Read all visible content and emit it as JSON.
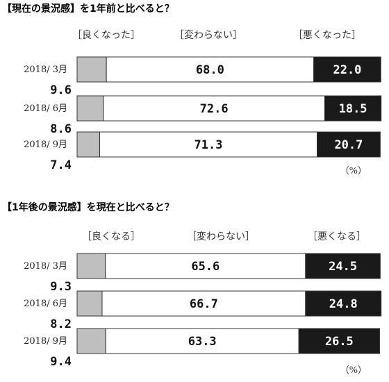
{
  "chart_data": [
    {
      "type": "bar",
      "stacked": true,
      "orientation": "horizontal",
      "title": "【現在の景況感】を1年前と比べると？",
      "headers": [
        "［良くなった］",
        "［変わらない］",
        "［悪くなった］"
      ],
      "categories": [
        "2018/ 3月",
        "2018/ 6月",
        "2018/ 9月"
      ],
      "series": [
        {
          "name": "［良くなった］",
          "values": [
            "9.6",
            "8.6",
            "7.4"
          ],
          "color": "#bfbfbf"
        },
        {
          "name": "［変わらない］",
          "values": [
            "68.0",
            "72.6",
            "71.3"
          ],
          "color": "#ffffff"
        },
        {
          "name": "［悪くなった］",
          "values": [
            "22.0",
            "18.5",
            "20.7"
          ],
          "color": "#1a1a1a"
        }
      ],
      "unit": "（%）",
      "xlim": [
        0,
        100
      ]
    },
    {
      "type": "bar",
      "stacked": true,
      "orientation": "horizontal",
      "title": "【1年後の景況感】を現在と比べると？",
      "headers": [
        "［良くなる］",
        "［変わらない］",
        "［悪くなる］"
      ],
      "categories": [
        "2018/ 3月",
        "2018/ 6月",
        "2018/ 9月"
      ],
      "series": [
        {
          "name": "［良くなる］",
          "values": [
            "9.3",
            "8.2",
            "9.4"
          ],
          "color": "#bfbfbf"
        },
        {
          "name": "［変わらない］",
          "values": [
            "65.6",
            "66.7",
            "63.3"
          ],
          "color": "#ffffff"
        },
        {
          "name": "［悪くなる］",
          "values": [
            "24.5",
            "24.8",
            "26.5"
          ],
          "color": "#1a1a1a"
        }
      ],
      "unit": "（%）",
      "xlim": [
        0,
        100
      ]
    }
  ]
}
